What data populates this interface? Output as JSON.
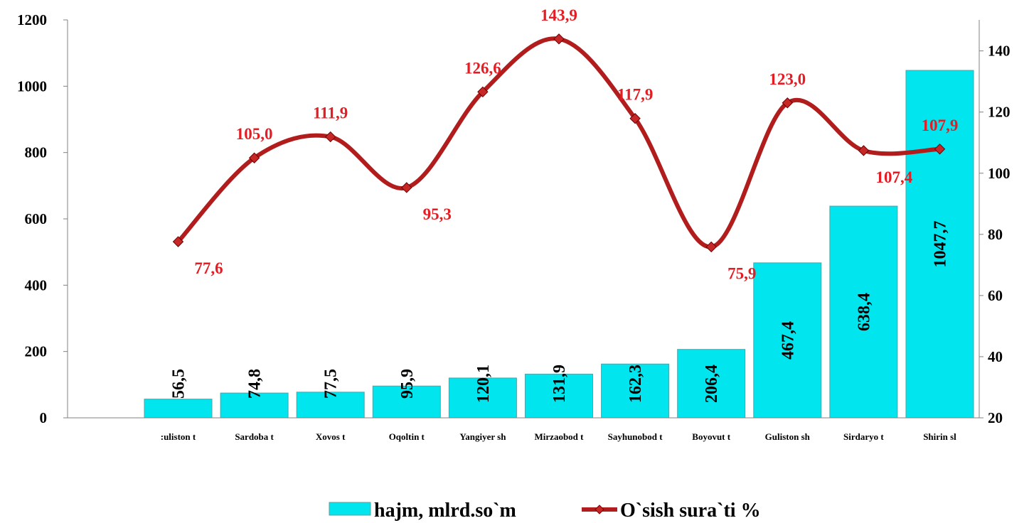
{
  "chart_data": {
    "type": "bar",
    "categories": [
      "Guliston t",
      "Sardoba t",
      "Xovos t",
      "Oqoltin t",
      "Yangiyer sh",
      "Mirzaobod t",
      "Sayhunobod t",
      "Boyovut t",
      "Guliston sh",
      "Sirdaryo t",
      "Shirin sh"
    ],
    "category_labels": [
      ":uliston t",
      "Sardoba t",
      "Xovos t",
      "Oqoltin t",
      "Yangiyer sh",
      "Mirzaobod t",
      "Sayhunobod t",
      "Boyovut t",
      "Guliston sh",
      "Sirdaryo t",
      "Shirin sl"
    ],
    "series": [
      {
        "name": "hajm, mlrd.so`m",
        "type": "bar",
        "axis": "left",
        "color": "#00e5ee",
        "values": [
          56.5,
          74.8,
          77.5,
          95.9,
          120.1,
          131.9,
          162.3,
          206.4,
          467.4,
          638.4,
          1047.7
        ],
        "labels": [
          "56,5",
          "74,8",
          "77,5",
          "95,9",
          "120,1",
          "131,9",
          "162,3",
          "206,4",
          "467,4",
          "638,4",
          "1047,7"
        ]
      },
      {
        "name": "O`sish sura`ti %",
        "type": "line",
        "axis": "right",
        "color": "#b11d1d",
        "label_color": "#e41c23",
        "values": [
          77.6,
          105.0,
          111.9,
          95.3,
          126.6,
          143.9,
          117.9,
          75.9,
          123.0,
          107.4,
          107.9
        ],
        "labels": [
          "77,6",
          "105,0",
          "111,9",
          "95,3",
          "126,6",
          "143,9",
          "117,9",
          "75,9",
          "123,0",
          "107,4",
          "107,9"
        ]
      }
    ],
    "y_left": {
      "min": 0,
      "max": 1200,
      "ticks": [
        "0",
        "200",
        "400",
        "600",
        "800",
        "1000",
        "1200"
      ]
    },
    "y_right": {
      "min": 20,
      "max": 150,
      "ticks": [
        "20",
        "40",
        "60",
        "80",
        "100",
        "120",
        "140"
      ]
    },
    "grid": false,
    "legend_position": "bottom",
    "legend": [
      "hajm, mlrd.so`m",
      "O`sish sura`ti %"
    ]
  }
}
